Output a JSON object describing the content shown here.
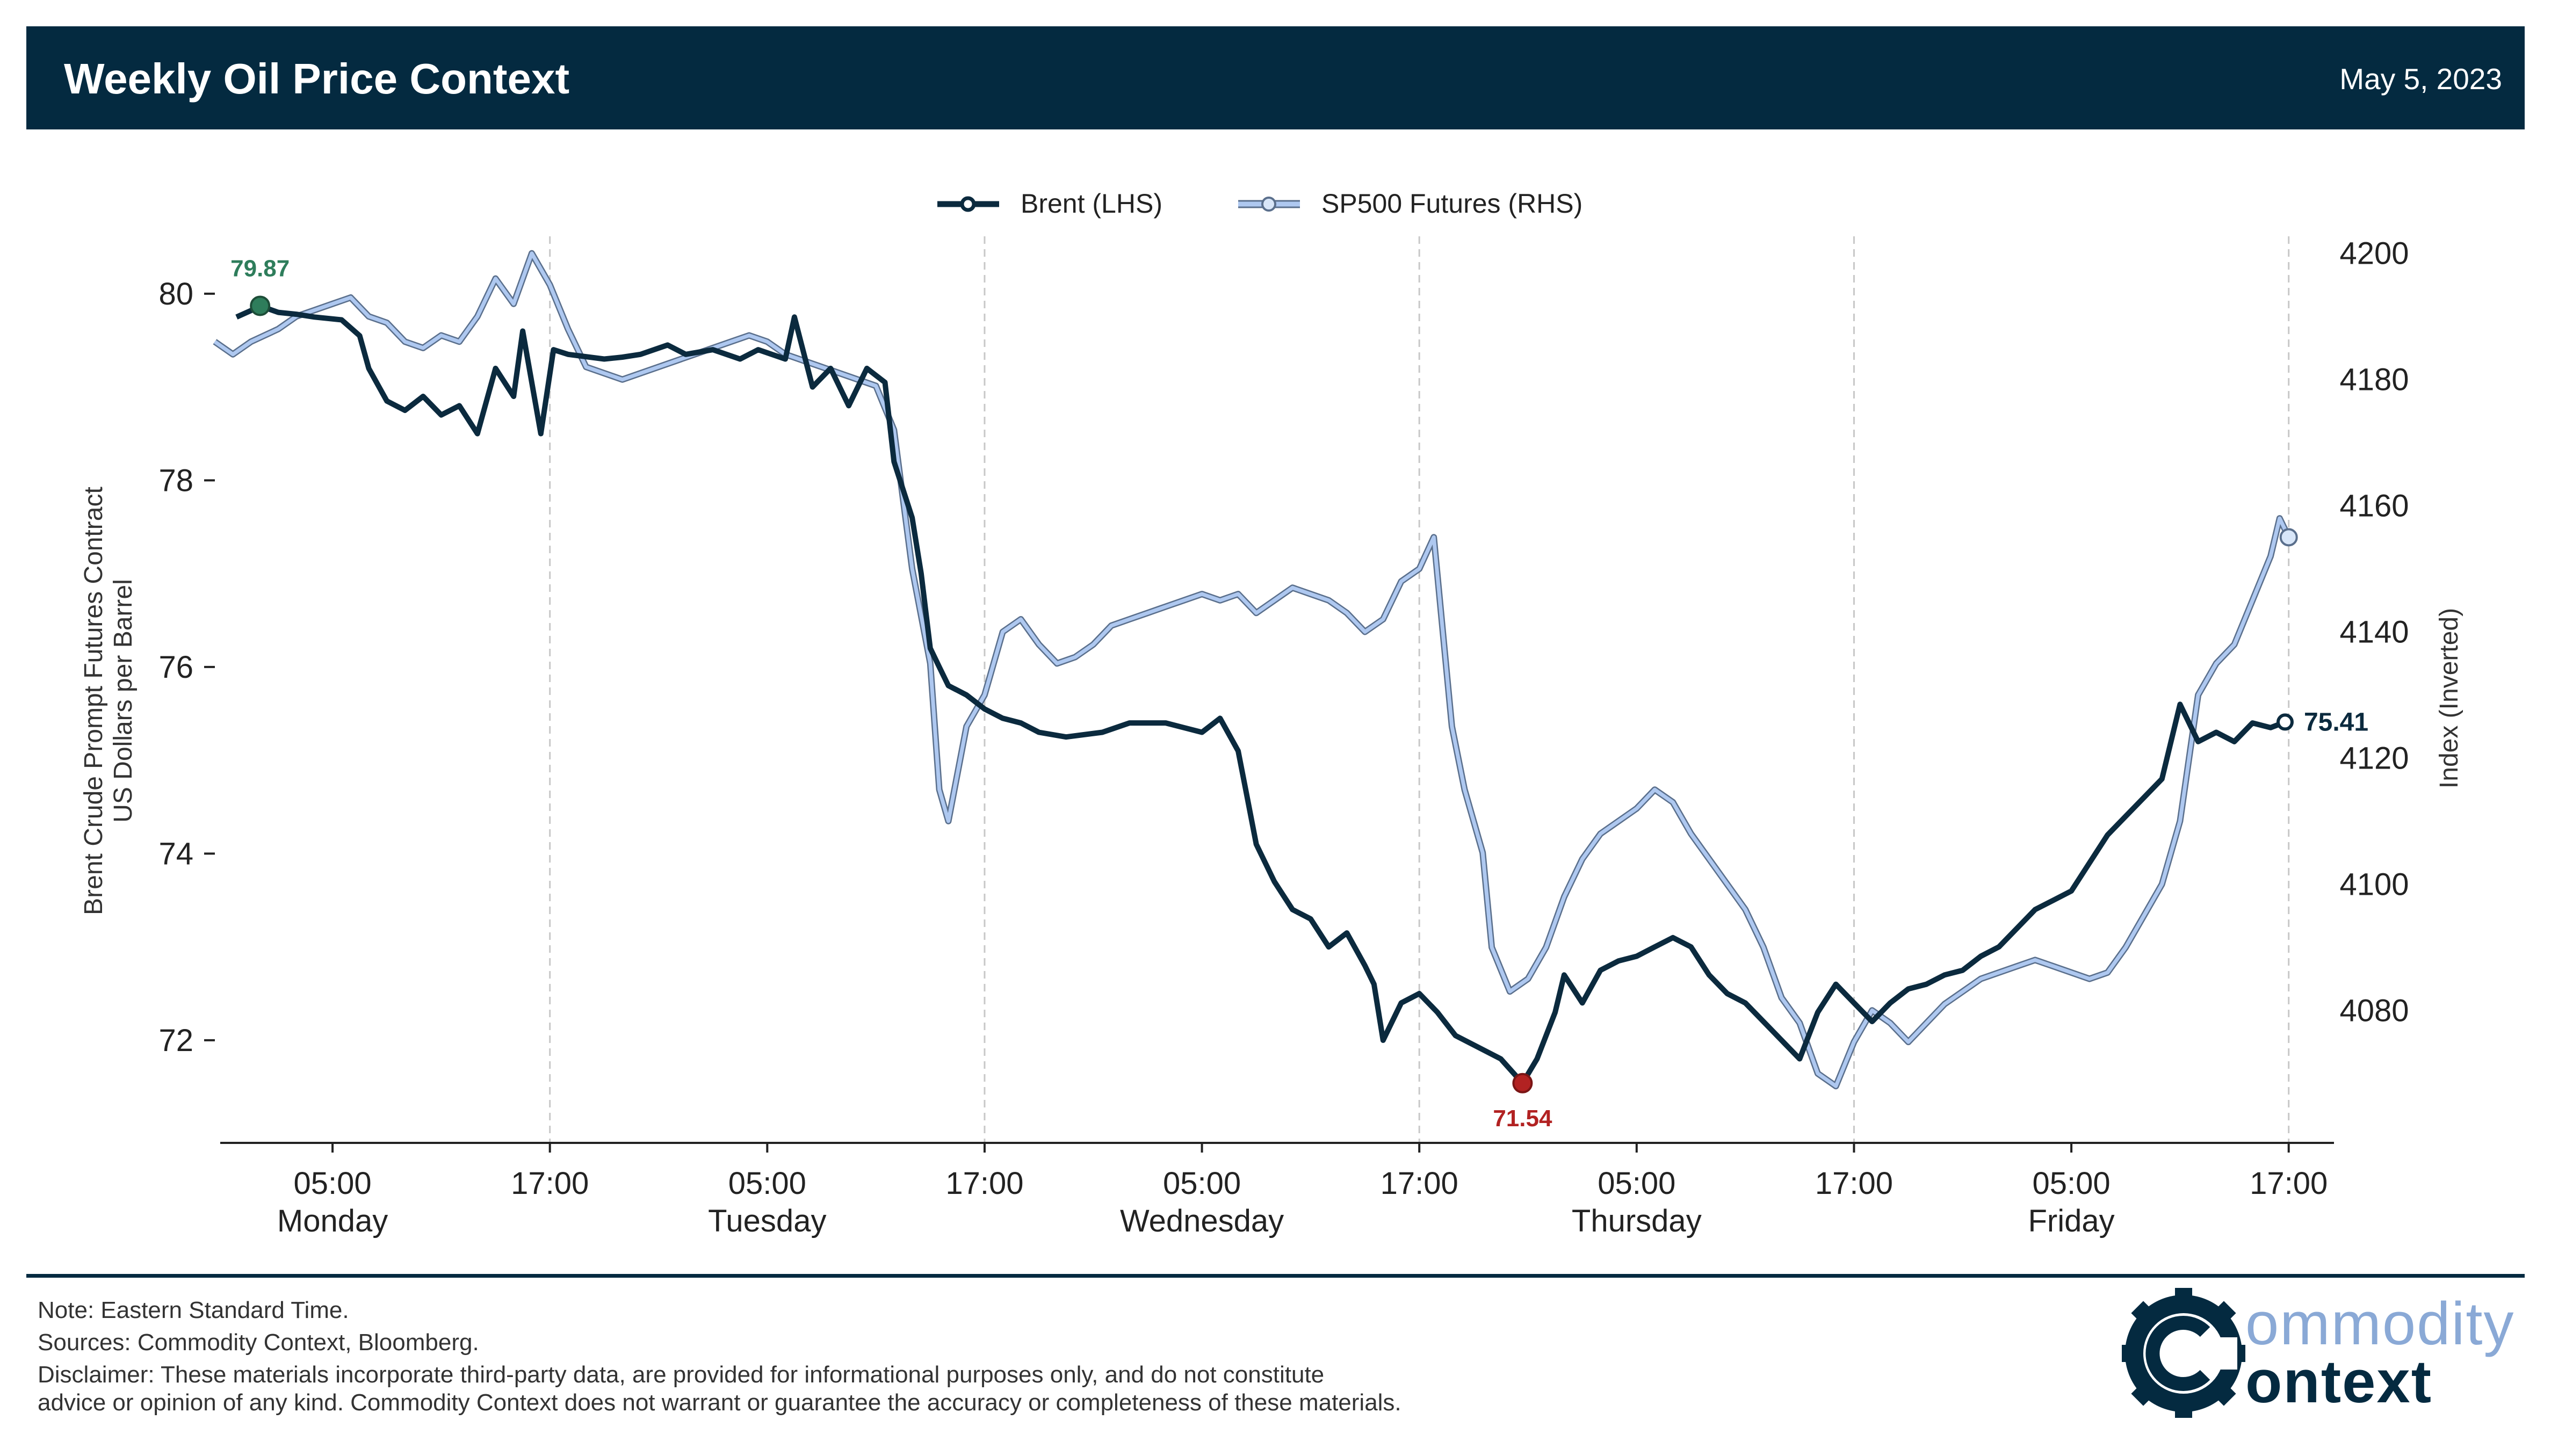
{
  "header": {
    "title": "Weekly Oil Price Context",
    "date": "May 5, 2023"
  },
  "legend": {
    "brent": "Brent (LHS)",
    "sp500": "SP500 Futures (RHS)"
  },
  "colors": {
    "header_bg": "#042a40",
    "brent": "#0b2a3e",
    "sp500_fill": "#aec8f0",
    "sp500_edge": "#5a6f8c",
    "max_marker": "#2e7d5b",
    "min_marker": "#b22222"
  },
  "notes": {
    "note": "Note: Eastern Standard Time.",
    "sources": "Sources: Commodity Context, Bloomberg.",
    "disclaimer1": "Disclaimer: These materials incorporate third-party data, are provided for informational purposes only, and do not constitute",
    "disclaimer2": "advice or opinion of any kind. Commodity Context does not warrant or guarantee the accuracy or completeness of these materials."
  },
  "logo": {
    "line1": "ommodity",
    "line2": "ontext",
    "icon": "gear-c-icon"
  },
  "chart_data": {
    "type": "line",
    "left_axis": {
      "label_line1": "Brent Crude Prompt Futures Contract",
      "label_line2": "US Dollars per Barrel",
      "ticks": [
        72,
        74,
        76,
        78,
        80
      ],
      "ylim": [
        70.9,
        80.5
      ]
    },
    "right_axis": {
      "label": "Index (Inverted)",
      "ticks": [
        4080,
        4100,
        4120,
        4140,
        4160,
        4180,
        4200
      ],
      "ylim": [
        4201,
        4059
      ],
      "inverted": true
    },
    "x_ticks": [
      {
        "label": "05:00",
        "day": "Monday"
      },
      {
        "label": "17:00",
        "day": ""
      },
      {
        "label": "05:00",
        "day": "Tuesday"
      },
      {
        "label": "17:00",
        "day": ""
      },
      {
        "label": "05:00",
        "day": "Wednesday"
      },
      {
        "label": "17:00",
        "day": ""
      },
      {
        "label": "05:00",
        "day": "Thursday"
      },
      {
        "label": "17:00",
        "day": ""
      },
      {
        "label": "05:00",
        "day": "Friday"
      },
      {
        "label": "17:00",
        "day": ""
      }
    ],
    "x_unit": "hours from Monday 00:00 EST",
    "x_range": [
      -1.2,
      115.5
    ],
    "grid": "vertical dashed at 17:00",
    "legend_position": "top-center",
    "series": [
      {
        "name": "Brent (LHS)",
        "axis": "left",
        "points": [
          [
            -0.3,
            79.75
          ],
          [
            0.5,
            79.82
          ],
          [
            1,
            79.87
          ],
          [
            2,
            79.8
          ],
          [
            3,
            79.78
          ],
          [
            4,
            79.75
          ],
          [
            5.5,
            79.72
          ],
          [
            6.5,
            79.55
          ],
          [
            7,
            79.2
          ],
          [
            8,
            78.85
          ],
          [
            9,
            78.75
          ],
          [
            10,
            78.9
          ],
          [
            11,
            78.7
          ],
          [
            12,
            78.8
          ],
          [
            13,
            78.5
          ],
          [
            14,
            79.2
          ],
          [
            15,
            78.9
          ],
          [
            15.5,
            79.6
          ],
          [
            16.5,
            78.5
          ],
          [
            17.2,
            79.4
          ],
          [
            18,
            79.35
          ],
          [
            20,
            79.3
          ],
          [
            21,
            79.32
          ],
          [
            22,
            79.35
          ],
          [
            23.5,
            79.45
          ],
          [
            24.5,
            79.35
          ],
          [
            26,
            79.4
          ],
          [
            27.5,
            79.3
          ],
          [
            28.5,
            79.4
          ],
          [
            30,
            79.3
          ],
          [
            30.5,
            79.75
          ],
          [
            31.5,
            79.0
          ],
          [
            32.5,
            79.2
          ],
          [
            33.5,
            78.8
          ],
          [
            34.5,
            79.2
          ],
          [
            35.5,
            79.05
          ],
          [
            36,
            78.2
          ],
          [
            37,
            77.6
          ],
          [
            37.5,
            77.0
          ],
          [
            38,
            76.2
          ],
          [
            38.5,
            76.0
          ],
          [
            39,
            75.8
          ],
          [
            40,
            75.7
          ],
          [
            41,
            75.55
          ],
          [
            42,
            75.45
          ],
          [
            43,
            75.4
          ],
          [
            44,
            75.3
          ],
          [
            45.5,
            75.25
          ],
          [
            47.5,
            75.3
          ],
          [
            49,
            75.4
          ],
          [
            51,
            75.4
          ],
          [
            52,
            75.35
          ],
          [
            53,
            75.3
          ],
          [
            54,
            75.45
          ],
          [
            55,
            75.1
          ],
          [
            55.5,
            74.6
          ],
          [
            56,
            74.1
          ],
          [
            57,
            73.7
          ],
          [
            58,
            73.4
          ],
          [
            59,
            73.3
          ],
          [
            60,
            73.0
          ],
          [
            61,
            73.15
          ],
          [
            62,
            72.8
          ],
          [
            62.5,
            72.6
          ],
          [
            63,
            72.0
          ],
          [
            64,
            72.4
          ],
          [
            65,
            72.5
          ],
          [
            66,
            72.3
          ],
          [
            67,
            72.05
          ],
          [
            68,
            71.95
          ],
          [
            69.5,
            71.8
          ],
          [
            70.7,
            71.54
          ],
          [
            71.5,
            71.8
          ],
          [
            72.5,
            72.3
          ],
          [
            73,
            72.7
          ],
          [
            74,
            72.4
          ],
          [
            75,
            72.75
          ],
          [
            76,
            72.85
          ],
          [
            77,
            72.9
          ],
          [
            78,
            73.0
          ],
          [
            79,
            73.1
          ],
          [
            80,
            73.0
          ],
          [
            81,
            72.7
          ],
          [
            82,
            72.5
          ],
          [
            83,
            72.4
          ],
          [
            84,
            72.2
          ],
          [
            85,
            72.0
          ],
          [
            86,
            71.8
          ],
          [
            87,
            72.3
          ],
          [
            88,
            72.6
          ],
          [
            89,
            72.4
          ],
          [
            90,
            72.2
          ],
          [
            91,
            72.4
          ],
          [
            92,
            72.55
          ],
          [
            93,
            72.6
          ],
          [
            94,
            72.7
          ],
          [
            95,
            72.75
          ],
          [
            96,
            72.9
          ],
          [
            97,
            73.0
          ],
          [
            98,
            73.2
          ],
          [
            99,
            73.4
          ],
          [
            100,
            73.5
          ],
          [
            101,
            73.6
          ],
          [
            102,
            73.9
          ],
          [
            103,
            74.2
          ],
          [
            104,
            74.4
          ],
          [
            105,
            74.6
          ],
          [
            106,
            74.8
          ],
          [
            107,
            75.6
          ],
          [
            108,
            75.2
          ],
          [
            109,
            75.3
          ],
          [
            110,
            75.2
          ],
          [
            111,
            75.4
          ],
          [
            112,
            75.35
          ],
          [
            112.8,
            75.41
          ]
        ]
      },
      {
        "name": "SP500 Futures (RHS)",
        "axis": "right",
        "points": [
          [
            -1.5,
            4186
          ],
          [
            -0.5,
            4184
          ],
          [
            0.5,
            4186
          ],
          [
            2,
            4188
          ],
          [
            3,
            4190
          ],
          [
            4,
            4191
          ],
          [
            5,
            4192
          ],
          [
            6,
            4193
          ],
          [
            7,
            4190
          ],
          [
            8,
            4189
          ],
          [
            9,
            4186
          ],
          [
            10,
            4185
          ],
          [
            11,
            4187
          ],
          [
            12,
            4186
          ],
          [
            13,
            4190
          ],
          [
            14,
            4196
          ],
          [
            15,
            4192
          ],
          [
            16,
            4200
          ],
          [
            17,
            4195
          ],
          [
            18,
            4188
          ],
          [
            19,
            4182
          ],
          [
            20,
            4181
          ],
          [
            21,
            4180
          ],
          [
            22,
            4181
          ],
          [
            23,
            4182
          ],
          [
            24,
            4183
          ],
          [
            25,
            4184
          ],
          [
            26,
            4185
          ],
          [
            27,
            4186
          ],
          [
            28,
            4187
          ],
          [
            29,
            4186
          ],
          [
            30,
            4184
          ],
          [
            31,
            4183
          ],
          [
            32,
            4182
          ],
          [
            33,
            4181
          ],
          [
            34,
            4180
          ],
          [
            35,
            4179
          ],
          [
            36,
            4172
          ],
          [
            37,
            4150
          ],
          [
            38,
            4135
          ],
          [
            38.5,
            4115
          ],
          [
            39,
            4110
          ],
          [
            40,
            4125
          ],
          [
            41,
            4130
          ],
          [
            42,
            4140
          ],
          [
            43,
            4142
          ],
          [
            44,
            4138
          ],
          [
            45,
            4135
          ],
          [
            46,
            4136
          ],
          [
            47,
            4138
          ],
          [
            48,
            4141
          ],
          [
            49,
            4142
          ],
          [
            50,
            4143
          ],
          [
            51,
            4144
          ],
          [
            52,
            4145
          ],
          [
            53,
            4146
          ],
          [
            54,
            4145
          ],
          [
            55,
            4146
          ],
          [
            56,
            4143
          ],
          [
            57,
            4145
          ],
          [
            58,
            4147
          ],
          [
            59,
            4146
          ],
          [
            60,
            4145
          ],
          [
            61,
            4143
          ],
          [
            62,
            4140
          ],
          [
            63,
            4142
          ],
          [
            64,
            4148
          ],
          [
            65,
            4150
          ],
          [
            65.8,
            4155
          ],
          [
            66.3,
            4140
          ],
          [
            66.8,
            4125
          ],
          [
            67.5,
            4115
          ],
          [
            68.5,
            4105
          ],
          [
            69,
            4090
          ],
          [
            70,
            4083
          ],
          [
            71,
            4085
          ],
          [
            72,
            4090
          ],
          [
            73,
            4098
          ],
          [
            74,
            4104
          ],
          [
            75,
            4108
          ],
          [
            76,
            4110
          ],
          [
            77,
            4112
          ],
          [
            78,
            4115
          ],
          [
            79,
            4113
          ],
          [
            80,
            4108
          ],
          [
            81,
            4104
          ],
          [
            82,
            4100
          ],
          [
            83,
            4096
          ],
          [
            84,
            4090
          ],
          [
            85,
            4082
          ],
          [
            86,
            4078
          ],
          [
            87,
            4070
          ],
          [
            88,
            4068
          ],
          [
            89,
            4075
          ],
          [
            90,
            4080
          ],
          [
            91,
            4078
          ],
          [
            92,
            4075
          ],
          [
            93,
            4078
          ],
          [
            94,
            4081
          ],
          [
            95,
            4083
          ],
          [
            96,
            4085
          ],
          [
            97,
            4086
          ],
          [
            98,
            4087
          ],
          [
            99,
            4088
          ],
          [
            100,
            4087
          ],
          [
            101,
            4086
          ],
          [
            102,
            4085
          ],
          [
            103,
            4086
          ],
          [
            104,
            4090
          ],
          [
            105,
            4095
          ],
          [
            106,
            4100
          ],
          [
            107,
            4110
          ],
          [
            108,
            4130
          ],
          [
            109,
            4135
          ],
          [
            110,
            4138
          ],
          [
            111,
            4145
          ],
          [
            112,
            4152
          ],
          [
            112.5,
            4158
          ],
          [
            113,
            4155
          ]
        ]
      }
    ],
    "annotations": [
      {
        "label": "79.87",
        "x": 1.0,
        "y": 79.87,
        "kind": "max"
      },
      {
        "label": "71.54",
        "x": 70.7,
        "y": 71.54,
        "kind": "min"
      },
      {
        "label": "75.41",
        "x": 112.8,
        "y": 75.41,
        "kind": "last"
      }
    ]
  }
}
